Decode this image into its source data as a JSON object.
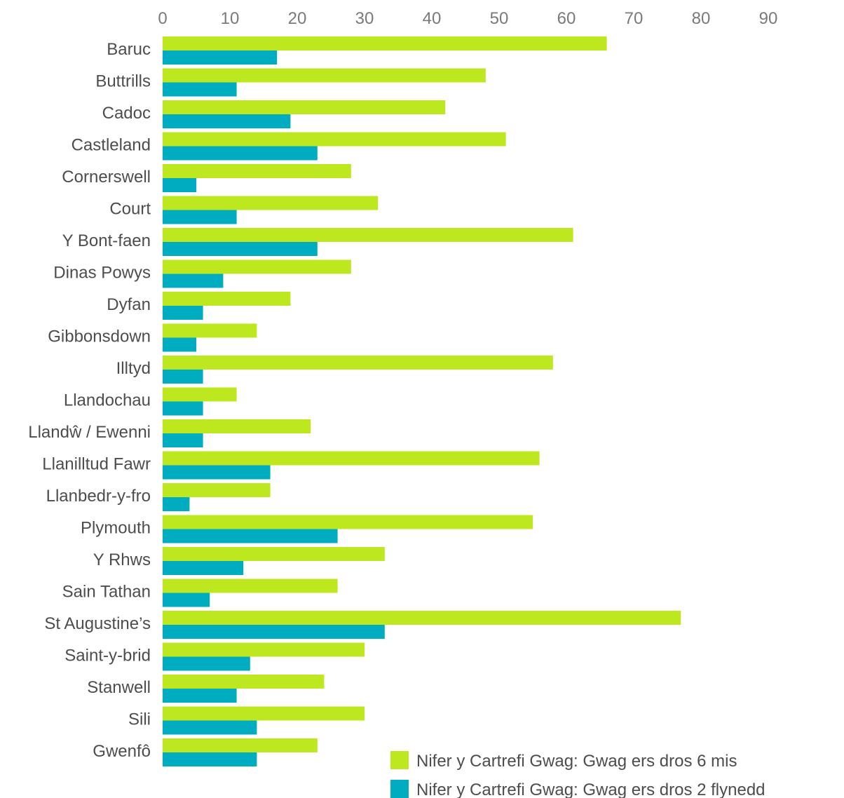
{
  "chart_data": {
    "type": "bar",
    "orientation": "horizontal",
    "title": "",
    "xlabel": "",
    "ylabel": "",
    "xlim": [
      0,
      90
    ],
    "x_ticks": [
      "0",
      "10",
      "20",
      "30",
      "40",
      "50",
      "60",
      "70",
      "80",
      "90"
    ],
    "x_axis_position": "top",
    "grid": false,
    "legend_position": "bottom-right",
    "categories": [
      "Baruc",
      "Buttrills",
      "Cadoc",
      "Castleland",
      "Cornerswell",
      "Court",
      "Y Bont-faen",
      "Dinas Powys",
      "Dyfan",
      "Gibbonsdown",
      "Illtyd",
      "Llandochau",
      "Llandŵ / Ewenni",
      "Llanilltud Fawr",
      "Llanbedr-y-fro",
      "Plymouth",
      "Y Rhws",
      "Sain Tathan",
      "St Augustine’s",
      "Saint-y-brid",
      "Stanwell",
      "Sili",
      "Gwenfô"
    ],
    "series": [
      {
        "name": "Nifer y Cartrefi Gwag: Gwag ers dros 6 mis",
        "color": "#bde81f",
        "values": [
          66,
          48,
          42,
          51,
          28,
          32,
          61,
          28,
          19,
          14,
          58,
          11,
          22,
          56,
          16,
          55,
          33,
          26,
          77,
          30,
          24,
          30,
          23
        ]
      },
      {
        "name": "Nifer y Cartrefi Gwag: Gwag ers dros 2 flynedd",
        "color": "#00adc0",
        "values": [
          17,
          11,
          19,
          23,
          5,
          11,
          23,
          9,
          6,
          5,
          6,
          6,
          6,
          16,
          4,
          26,
          12,
          7,
          33,
          13,
          11,
          14,
          14
        ]
      }
    ]
  }
}
